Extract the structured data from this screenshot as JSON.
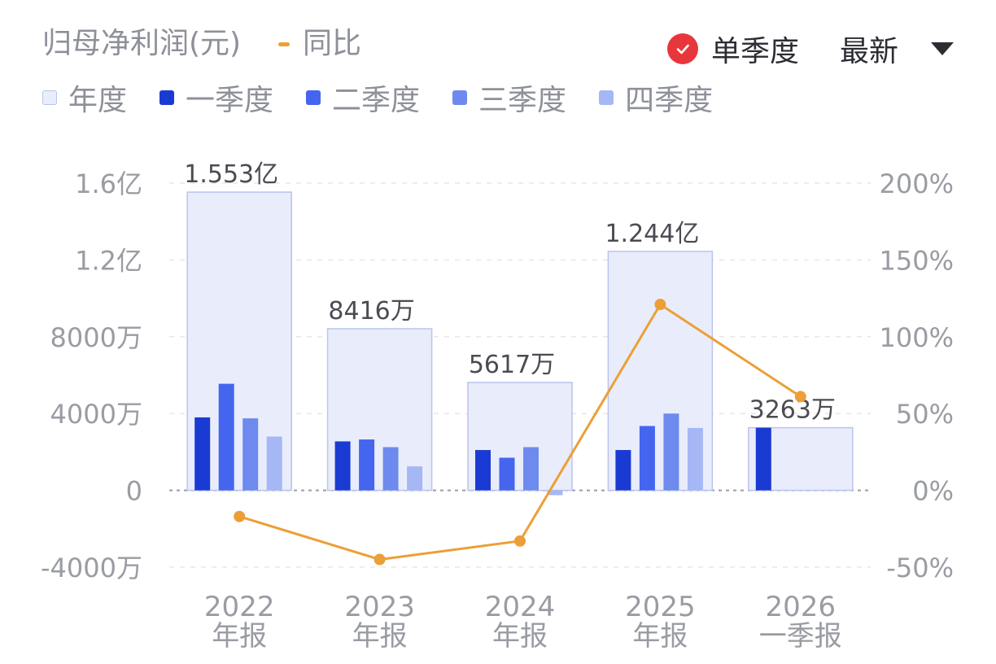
{
  "header": {
    "metric_label": "归母净利润(元)",
    "yoy_label": "同比",
    "toggle_label": "单季度",
    "toggle_checked": true,
    "sort_label": "最新"
  },
  "legend": [
    {
      "label": "年度",
      "color": "#e9edfb",
      "icon": "square"
    },
    {
      "label": "一季度",
      "color": "#1a3bd3",
      "icon": "square"
    },
    {
      "label": "二季度",
      "color": "#4565ef",
      "icon": "square"
    },
    {
      "label": "三季度",
      "color": "#6e8aef",
      "icon": "square"
    },
    {
      "label": "四季度",
      "color": "#a6b7f5",
      "icon": "square"
    }
  ],
  "colors": {
    "annual_fill": "#e9edfb",
    "annual_stroke": "#b9c4ee",
    "q1": "#1a3bd3",
    "q2": "#4565ef",
    "q3": "#6e8aef",
    "q4": "#a6b7f5",
    "yoy_line": "#ec9f37",
    "axis_text": "#9a9ca3",
    "grid": "#e6e7ea",
    "zero_line": "#9a9ca3"
  },
  "chart_data": {
    "type": "bar",
    "categories": [
      "2022",
      "2023",
      "2024",
      "2025",
      "2026"
    ],
    "category_subtitles": [
      "年报",
      "年报",
      "年报",
      "年报",
      "一季报"
    ],
    "left_axis": {
      "ticks": [
        160000000,
        120000000,
        80000000,
        40000000,
        0,
        -40000000
      ],
      "tick_labels": [
        "1.6亿",
        "1.2亿",
        "8000万",
        "4000万",
        "0",
        "-4000万"
      ],
      "range": [
        -40000000,
        160000000
      ]
    },
    "right_axis": {
      "ticks": [
        200,
        150,
        100,
        50,
        0,
        -50
      ],
      "tick_labels": [
        "200%",
        "150%",
        "100%",
        "50%",
        "0%",
        "-50%"
      ],
      "range": [
        -50,
        200
      ]
    },
    "annual": {
      "values": [
        155300000,
        84160000,
        56170000,
        124400000,
        32630000
      ],
      "labels": [
        "1.553亿",
        "8416万",
        "5617万",
        "1.244亿",
        "3263万"
      ]
    },
    "quarterly": [
      {
        "name": "一季度",
        "values": [
          38000000,
          25500000,
          21000000,
          21000000,
          32630000
        ]
      },
      {
        "name": "二季度",
        "values": [
          55500000,
          26500000,
          17000000,
          33500000,
          null
        ]
      },
      {
        "name": "三季度",
        "values": [
          37500000,
          22500000,
          22500000,
          40000000,
          null
        ]
      },
      {
        "name": "四季度",
        "values": [
          28000000,
          12500000,
          -2500000,
          32500000,
          null
        ]
      }
    ],
    "yoy": {
      "name": "同比",
      "values": [
        -17,
        -45,
        -33,
        121,
        61
      ]
    },
    "grid": true,
    "legend_position": "top-left"
  }
}
